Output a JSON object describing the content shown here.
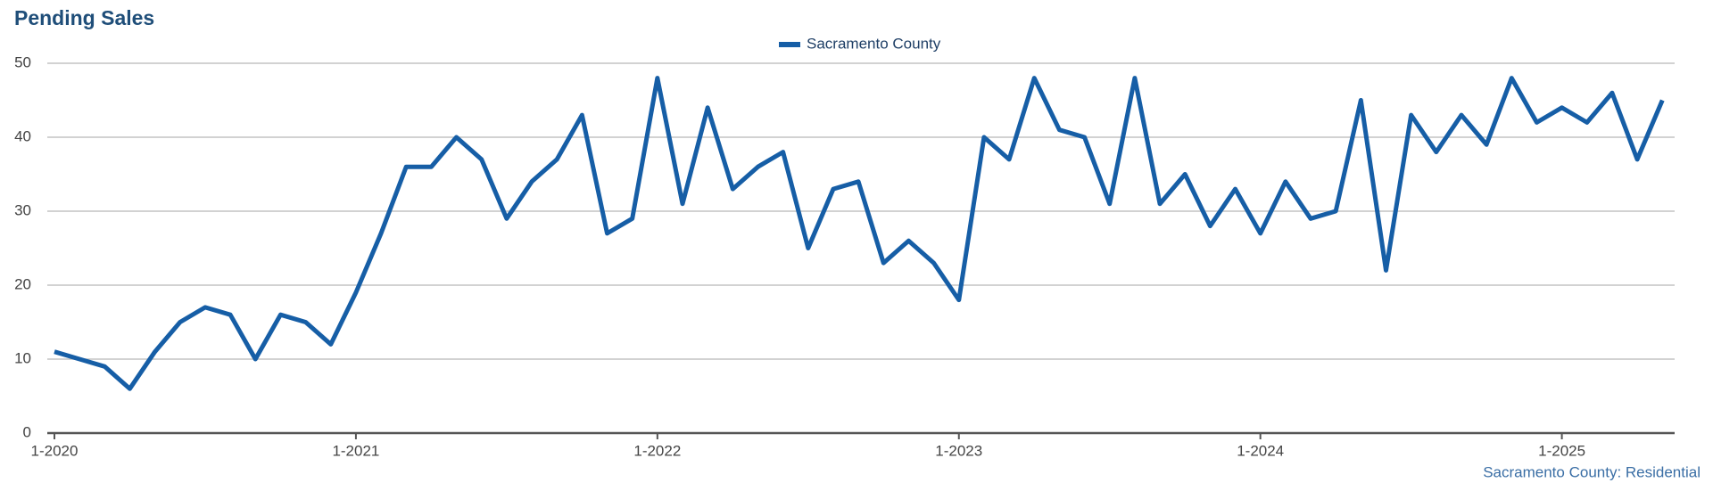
{
  "chart_data": {
    "type": "line",
    "title": "Pending Sales",
    "footer": "Sacramento County: Residential",
    "categories": [
      "1-2020",
      null,
      null,
      null,
      null,
      null,
      null,
      null,
      null,
      null,
      null,
      null,
      "1-2021",
      null,
      null,
      null,
      null,
      null,
      null,
      null,
      null,
      null,
      null,
      null,
      "1-2022",
      null,
      null,
      null,
      null,
      null,
      null,
      null,
      null,
      null,
      null,
      null,
      "1-2023",
      null,
      null,
      null,
      null,
      null,
      null,
      null,
      null,
      null,
      null,
      null,
      "1-2024",
      null,
      null,
      null,
      null,
      null,
      null,
      null,
      null,
      null,
      null,
      null,
      "1-2025",
      null,
      null,
      null,
      null
    ],
    "series": [
      {
        "name": "Sacramento County",
        "color": "#165ea6",
        "values": [
          11,
          10,
          9,
          6,
          11,
          15,
          17,
          16,
          10,
          16,
          15,
          12,
          19,
          27,
          36,
          36,
          40,
          37,
          29,
          34,
          37,
          43,
          27,
          29,
          48,
          31,
          44,
          33,
          36,
          38,
          25,
          33,
          34,
          23,
          26,
          23,
          18,
          40,
          37,
          48,
          41,
          40,
          31,
          48,
          31,
          35,
          28,
          33,
          27,
          34,
          29,
          30,
          45,
          22,
          43,
          38,
          43,
          39,
          48,
          42,
          44,
          42,
          46,
          37,
          45
        ]
      }
    ],
    "ylim": [
      0,
      50
    ],
    "yticks": [
      0,
      10,
      20,
      30,
      40,
      50
    ],
    "grid": true,
    "legend": "top"
  }
}
